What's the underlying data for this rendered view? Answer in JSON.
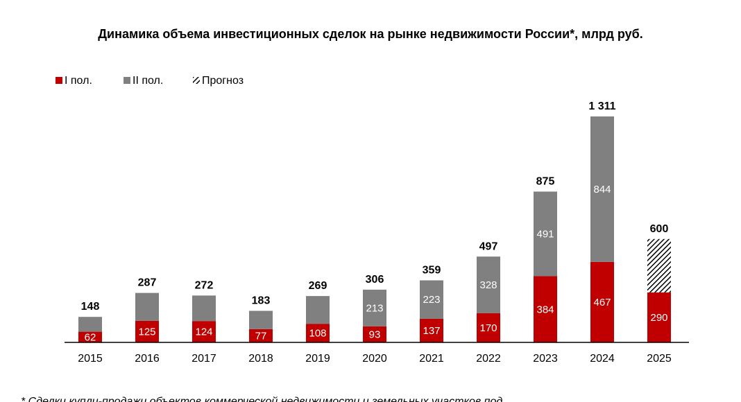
{
  "chart_data": {
    "type": "bar",
    "stacked": true,
    "title": "Динамика объема инвестиционных сделок на рынке недвижимости России*, млрд руб.",
    "categories": [
      "2015",
      "2016",
      "2017",
      "2018",
      "2019",
      "2020",
      "2021",
      "2022",
      "2023",
      "2024",
      "2025"
    ],
    "series": [
      {
        "name": "I пол.",
        "color": "#c00000",
        "values": [
          62,
          125,
          124,
          77,
          108,
          93,
          137,
          170,
          384,
          467,
          290
        ],
        "labels": [
          "62",
          "125",
          "124",
          "77",
          "108",
          "93",
          "137",
          "170",
          "384",
          "467",
          "290"
        ]
      },
      {
        "name": "II пол.",
        "color": "#808080",
        "values": [
          86,
          162,
          148,
          106,
          161,
          213,
          223,
          328,
          491,
          844,
          null
        ],
        "labels": [
          null,
          null,
          null,
          null,
          null,
          "213",
          "223",
          "328",
          "491",
          "844",
          null
        ]
      },
      {
        "name": "Прогноз",
        "pattern": "hatched",
        "values": [
          null,
          null,
          null,
          null,
          null,
          null,
          null,
          null,
          null,
          null,
          310
        ],
        "labels": [
          null,
          null,
          null,
          null,
          null,
          null,
          null,
          null,
          null,
          null,
          null
        ]
      }
    ],
    "totals": [
      148,
      287,
      272,
      183,
      269,
      306,
      359,
      497,
      875,
      1311,
      600
    ],
    "total_labels": [
      "148",
      "287",
      "272",
      "183",
      "269",
      "306",
      "359",
      "497",
      "875",
      "1 311",
      "600"
    ],
    "ylim": [
      0,
      1311
    ],
    "legend_position": "top-left",
    "grid": false
  },
  "footnote": "* Сделки купли-продажи объектов коммерческой недвижимости и земельных участков под"
}
